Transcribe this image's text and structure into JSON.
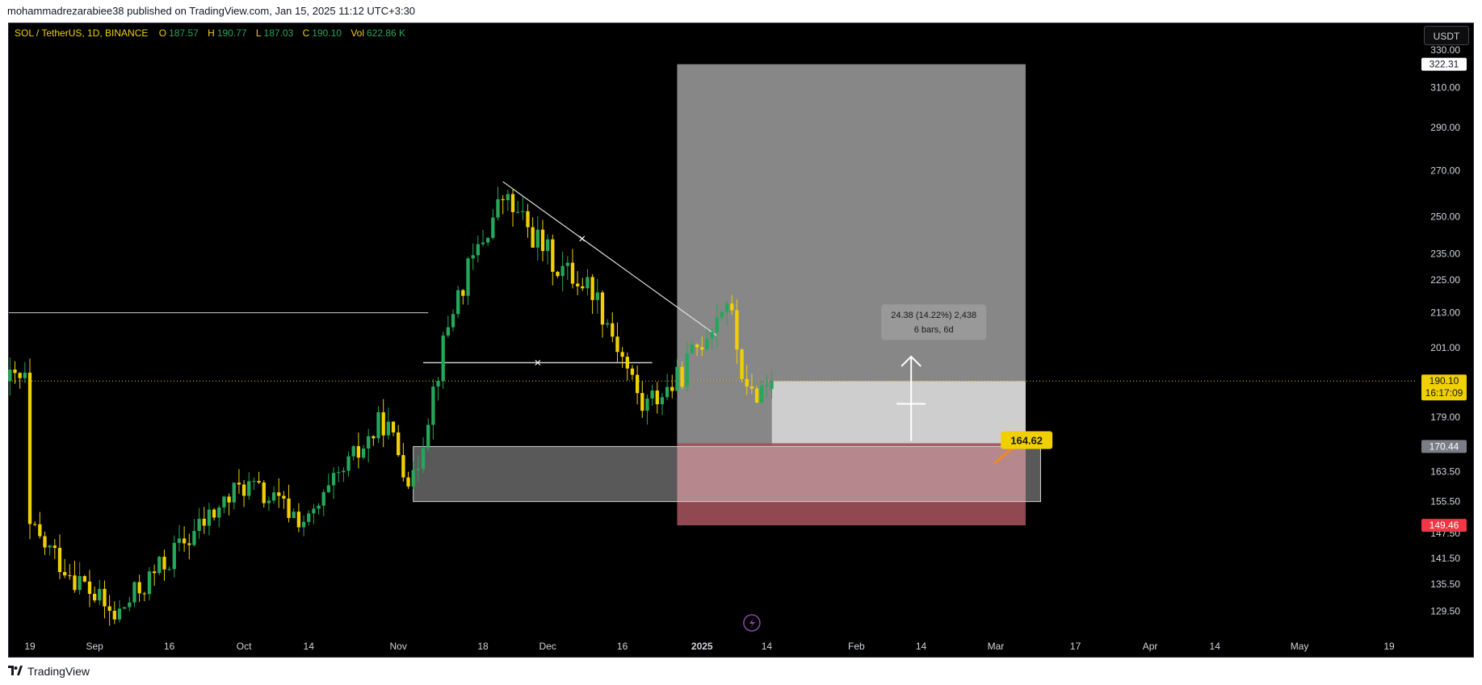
{
  "header": {
    "publish_line": "mohammadrezarabiee38 published on TradingView.com, Jan 15, 2025 11:12 UTC+3:30"
  },
  "footer": {
    "brand": "TradingView"
  },
  "legend": {
    "symbol": "SOL / TetherUS, 1D, BINANCE",
    "o_label": "O",
    "o_value": "187.57",
    "h_label": "H",
    "h_value": "190.77",
    "l_label": "L",
    "l_value": "187.03",
    "c_label": "C",
    "c_value": "190.10",
    "vol_label": "Vol",
    "vol_value": "622.86 K"
  },
  "currency_button": "USDT",
  "colors": {
    "up": "#26a65b",
    "down": "#f0d000",
    "target_zone": "#9a9a9a",
    "entry_zone": "#d9d9d9",
    "stop_zone": "#a0505a",
    "price_label_bg": "#f0d000",
    "stop_label_bg": "#f23645"
  },
  "chart_data": {
    "type": "candlestick",
    "symbol": "SOL / TetherUS",
    "interval": "1D",
    "exchange": "BINANCE",
    "y_axis": {
      "scale": "log",
      "ylim": [
        124,
        345
      ],
      "ticks": [
        "330.00",
        "310.00",
        "290.00",
        "270.00",
        "250.00",
        "235.00",
        "225.00",
        "213.00",
        "201.00",
        "179.00",
        "163.50",
        "155.50",
        "147.50",
        "141.50",
        "135.50",
        "129.50"
      ]
    },
    "x_axis": {
      "ticks": [
        "19",
        "Sep",
        "16",
        "Oct",
        "14",
        "Nov",
        "18",
        "Dec",
        "16",
        "2025",
        "14",
        "Feb",
        "14",
        "Mar",
        "17",
        "Apr",
        "14",
        "May",
        "19"
      ]
    },
    "price_labels": {
      "target": "322.31",
      "last_price": "190.10",
      "countdown": "16:17:09",
      "entry": "170.44",
      "stop": "149.46",
      "partial": "170.44"
    },
    "position_tool": {
      "type": "long",
      "target": 322.31,
      "entry": 170.44,
      "stop": 149.46,
      "current": 190.1
    },
    "measure_box": {
      "line1": "24.38 (14.22%) 2,438",
      "line2": "6 bars, 6d"
    },
    "zone_label": "164.62",
    "anchors": [
      {
        "date": "Aug 19",
        "price": 148.0
      },
      {
        "date": "Sep 05",
        "price": 128.0
      },
      {
        "date": "Oct 01",
        "price": 160.0
      },
      {
        "date": "Oct 14",
        "price": 150.0
      },
      {
        "date": "Oct 29",
        "price": 178.0
      },
      {
        "date": "Nov 04",
        "price": 160.0
      },
      {
        "date": "Nov 12",
        "price": 215.0
      },
      {
        "date": "Nov 22",
        "price": 258.0
      },
      {
        "date": "Dec 03",
        "price": 230.0
      },
      {
        "date": "Dec 10",
        "price": 222.0
      },
      {
        "date": "Dec 20",
        "price": 182.0
      },
      {
        "date": "Dec 27",
        "price": 190.0
      },
      {
        "date": "Jan 06",
        "price": 218.0
      },
      {
        "date": "Jan 10",
        "price": 185.0
      },
      {
        "date": "Jan 15",
        "price": 190.1
      }
    ],
    "drawings": {
      "resistance_line": 213.0,
      "neckline": 196.0,
      "demand_zone": [
        155.5,
        170.44
      ],
      "trendline": [
        {
          "date": "Nov 22",
          "price": 265.0
        },
        {
          "date": "Jan 04",
          "price": 205.0
        }
      ]
    }
  }
}
